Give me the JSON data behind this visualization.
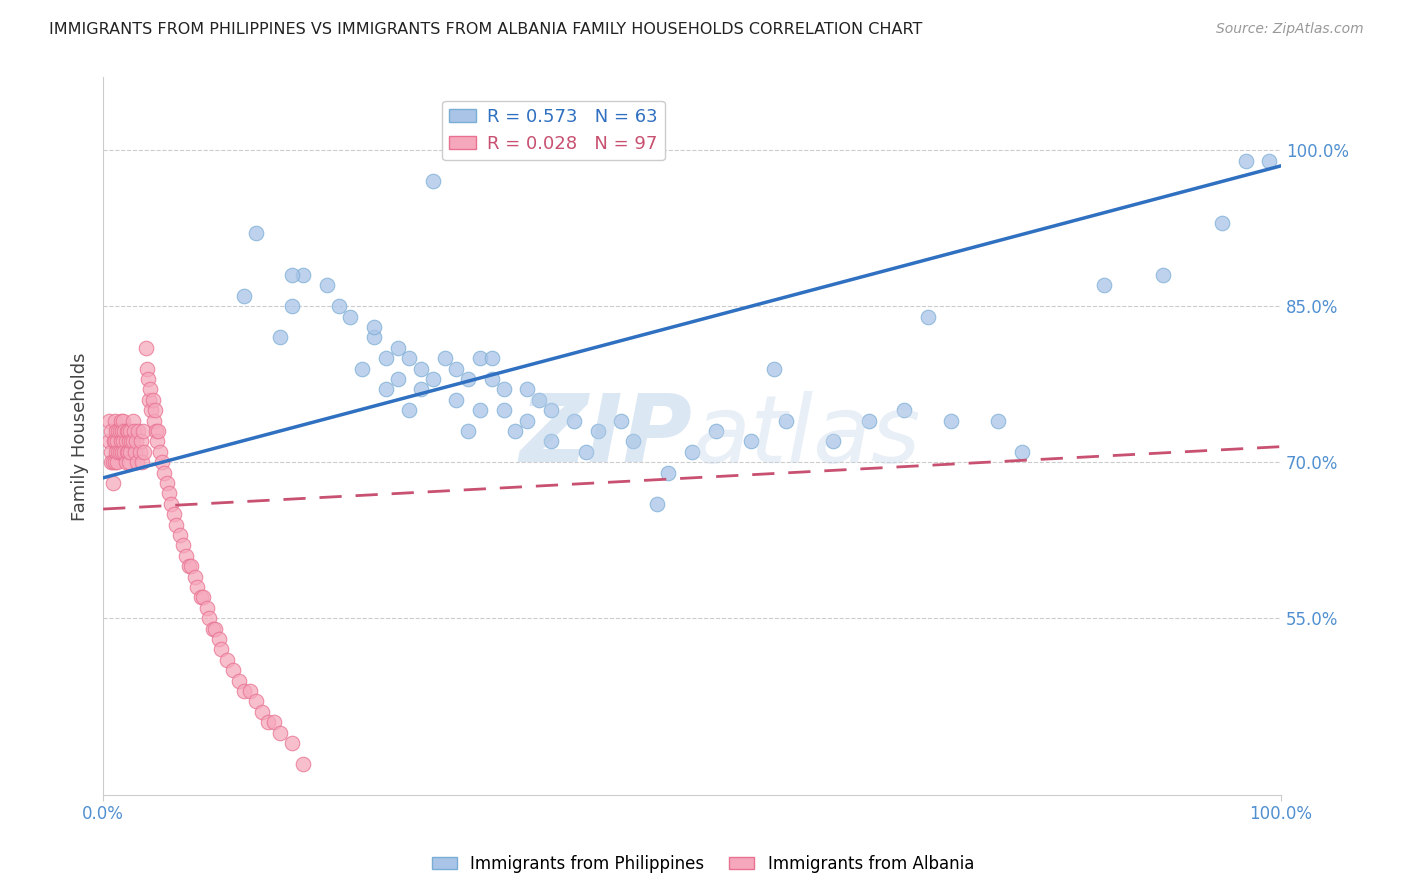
{
  "title": "IMMIGRANTS FROM PHILIPPINES VS IMMIGRANTS FROM ALBANIA FAMILY HOUSEHOLDS CORRELATION CHART",
  "source": "Source: ZipAtlas.com",
  "ylabel": "Family Households",
  "watermark_zip": "ZIP",
  "watermark_atlas": "atlas",
  "right_yticks": [
    0.55,
    0.7,
    0.85,
    1.0
  ],
  "right_yticklabels": [
    "55.0%",
    "70.0%",
    "85.0%",
    "100.0%"
  ],
  "xlim": [
    0.0,
    1.0
  ],
  "ylim": [
    0.38,
    1.07
  ],
  "philippines_color": "#aac4e8",
  "albania_color": "#f5a8bb",
  "philippines_edge": "#7aadd4",
  "albania_edge": "#e87090",
  "trend_blue": "#3070c0",
  "trend_pink": "#c85070",
  "grid_color": "#cccccc",
  "title_color": "#222222",
  "right_label_color": "#5090d0",
  "bottom_label_color": "#5090d0",
  "xtick_positions": [
    0.0,
    1.0
  ],
  "xtick_labels": [
    "0.0%",
    "100.0%"
  ],
  "philippines_x": [
    0.28,
    0.12,
    0.13,
    0.15,
    0.17,
    0.16,
    0.16,
    0.19,
    0.2,
    0.21,
    0.22,
    0.23,
    0.23,
    0.24,
    0.24,
    0.25,
    0.25,
    0.26,
    0.26,
    0.27,
    0.27,
    0.28,
    0.29,
    0.3,
    0.3,
    0.31,
    0.31,
    0.32,
    0.32,
    0.33,
    0.33,
    0.34,
    0.34,
    0.35,
    0.36,
    0.36,
    0.37,
    0.38,
    0.38,
    0.4,
    0.41,
    0.42,
    0.44,
    0.45,
    0.47,
    0.48,
    0.5,
    0.52,
    0.55,
    0.57,
    0.58,
    0.62,
    0.65,
    0.68,
    0.7,
    0.72,
    0.76,
    0.78,
    0.85,
    0.9,
    0.95,
    0.97,
    0.99
  ],
  "philippines_y": [
    0.97,
    0.86,
    0.92,
    0.82,
    0.88,
    0.85,
    0.88,
    0.87,
    0.85,
    0.84,
    0.79,
    0.82,
    0.83,
    0.8,
    0.77,
    0.81,
    0.78,
    0.8,
    0.75,
    0.79,
    0.77,
    0.78,
    0.8,
    0.76,
    0.79,
    0.78,
    0.73,
    0.75,
    0.8,
    0.78,
    0.8,
    0.75,
    0.77,
    0.73,
    0.77,
    0.74,
    0.76,
    0.75,
    0.72,
    0.74,
    0.71,
    0.73,
    0.74,
    0.72,
    0.66,
    0.69,
    0.71,
    0.73,
    0.72,
    0.79,
    0.74,
    0.72,
    0.74,
    0.75,
    0.84,
    0.74,
    0.74,
    0.71,
    0.87,
    0.88,
    0.93,
    0.99,
    0.99
  ],
  "albania_x": [
    0.005,
    0.005,
    0.007,
    0.007,
    0.007,
    0.008,
    0.008,
    0.009,
    0.01,
    0.01,
    0.01,
    0.011,
    0.011,
    0.012,
    0.012,
    0.013,
    0.013,
    0.014,
    0.014,
    0.015,
    0.015,
    0.016,
    0.016,
    0.017,
    0.017,
    0.018,
    0.018,
    0.019,
    0.019,
    0.02,
    0.02,
    0.021,
    0.021,
    0.022,
    0.022,
    0.023,
    0.023,
    0.024,
    0.025,
    0.025,
    0.026,
    0.027,
    0.028,
    0.029,
    0.03,
    0.031,
    0.032,
    0.033,
    0.034,
    0.035,
    0.036,
    0.037,
    0.038,
    0.039,
    0.04,
    0.041,
    0.042,
    0.043,
    0.044,
    0.045,
    0.046,
    0.047,
    0.048,
    0.05,
    0.052,
    0.054,
    0.056,
    0.058,
    0.06,
    0.062,
    0.065,
    0.068,
    0.07,
    0.073,
    0.075,
    0.078,
    0.08,
    0.083,
    0.085,
    0.088,
    0.09,
    0.093,
    0.095,
    0.098,
    0.1,
    0.105,
    0.11,
    0.115,
    0.12,
    0.125,
    0.13,
    0.135,
    0.14,
    0.145,
    0.15,
    0.16,
    0.17
  ],
  "albania_y": [
    0.72,
    0.74,
    0.73,
    0.71,
    0.7,
    0.7,
    0.68,
    0.72,
    0.74,
    0.72,
    0.7,
    0.73,
    0.71,
    0.72,
    0.7,
    0.73,
    0.71,
    0.73,
    0.71,
    0.74,
    0.72,
    0.73,
    0.71,
    0.74,
    0.72,
    0.73,
    0.71,
    0.72,
    0.7,
    0.73,
    0.71,
    0.73,
    0.71,
    0.72,
    0.7,
    0.73,
    0.71,
    0.72,
    0.74,
    0.72,
    0.73,
    0.71,
    0.72,
    0.7,
    0.73,
    0.71,
    0.72,
    0.7,
    0.73,
    0.71,
    0.81,
    0.79,
    0.78,
    0.76,
    0.77,
    0.75,
    0.76,
    0.74,
    0.75,
    0.73,
    0.72,
    0.73,
    0.71,
    0.7,
    0.69,
    0.68,
    0.67,
    0.66,
    0.65,
    0.64,
    0.63,
    0.62,
    0.61,
    0.6,
    0.6,
    0.59,
    0.58,
    0.57,
    0.57,
    0.56,
    0.55,
    0.54,
    0.54,
    0.53,
    0.52,
    0.51,
    0.5,
    0.49,
    0.48,
    0.48,
    0.47,
    0.46,
    0.45,
    0.45,
    0.44,
    0.43,
    0.41
  ]
}
